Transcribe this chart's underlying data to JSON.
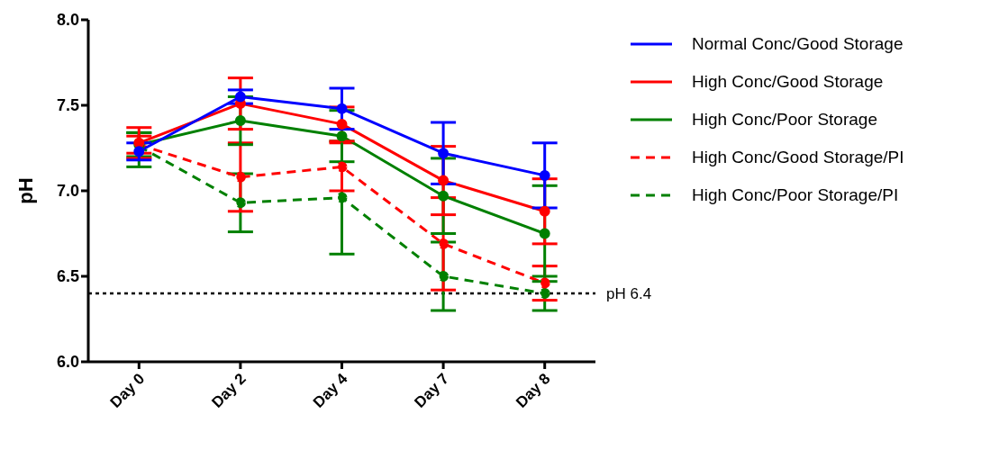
{
  "chart_data": {
    "type": "line",
    "ylabel": "pH",
    "categories": [
      "Day 0",
      "Day 2",
      "Day 4",
      "Day 7",
      "Day 8"
    ],
    "ylim": [
      6.0,
      8.0
    ],
    "yticks": [
      {
        "value": 6.0,
        "label": "6.0"
      },
      {
        "value": 6.5,
        "label": "6.5"
      },
      {
        "value": 7.0,
        "label": "7.0"
      },
      {
        "value": 7.5,
        "label": "7.5"
      },
      {
        "value": 8.0,
        "label": "8.0"
      }
    ],
    "grid": false,
    "legend": "top right",
    "marker": "circle",
    "series": [
      {
        "name": "Normal Conc/Good Storage",
        "color": "#0000ff",
        "line_style": "solid",
        "values": [
          7.23,
          7.55,
          7.48,
          7.22,
          7.09
        ],
        "errors": [
          0.05,
          0.04,
          0.12,
          0.18,
          0.19
        ]
      },
      {
        "name": "High Conc/Good Storage",
        "color": "#ff0000",
        "line_style": "solid",
        "values": [
          7.28,
          7.51,
          7.39,
          7.06,
          6.88
        ],
        "errors": [
          0.09,
          0.15,
          0.1,
          0.2,
          0.19
        ]
      },
      {
        "name": "High Conc/Poor Storage",
        "color": "#008000",
        "line_style": "solid",
        "values": [
          7.27,
          7.41,
          7.32,
          6.97,
          6.75
        ],
        "errors": [
          0.07,
          0.14,
          0.15,
          0.22,
          0.28
        ]
      },
      {
        "name": "High Conc/Good Storage/PI",
        "color": "#ff0000",
        "line_style": "dashed",
        "values": [
          7.27,
          7.08,
          7.14,
          6.69,
          6.46
        ],
        "errors": [
          0.05,
          0.2,
          0.14,
          0.27,
          0.1
        ]
      },
      {
        "name": "High Conc/Poor Storage/PI",
        "color": "#008000",
        "line_style": "dashed",
        "values": [
          7.26,
          6.93,
          6.96,
          6.5,
          6.4
        ],
        "errors": [
          [
            7.14,
            7.34
          ],
          0.17,
          0.33,
          0.2,
          0.1
        ]
      }
    ],
    "ref_lines": [
      {
        "axis": "y",
        "value": 6.4,
        "label": "pH 6.4",
        "color": "#000000",
        "line_style": "dotted"
      }
    ]
  }
}
